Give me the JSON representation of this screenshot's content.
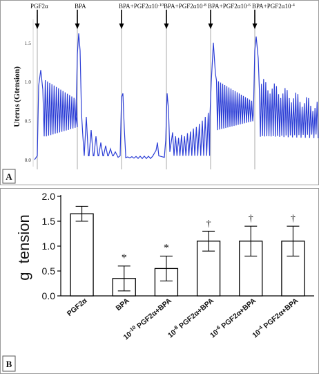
{
  "panel_a": {
    "panel_label": "A",
    "ylabel": "Uterus (Gtension)",
    "y_ticks": [
      "0.0",
      "0.5",
      "1.0",
      "1.5"
    ],
    "markers": [
      {
        "label": "PGF2α",
        "sup": ""
      },
      {
        "label": "BPA",
        "sup": ""
      },
      {
        "label": "BPA+PGF2α10",
        "sup": "-10"
      },
      {
        "label": "BPA+PGF2α10",
        "sup": "-8"
      },
      {
        "label": "BPA+PGF2α10",
        "sup": "-6"
      },
      {
        "label": "BPA+PGF2α10",
        "sup": "-4"
      }
    ],
    "trace_color": "#2d3fd6"
  },
  "panel_b": {
    "panel_label": "B",
    "ylabel": "g  tension",
    "y_tick_labels": [
      "0.0",
      "0.5",
      "1.0",
      "1.5",
      "2.0"
    ],
    "category_labels": [
      {
        "pre": "",
        "sup": "",
        "main": "PGF2α"
      },
      {
        "pre": "",
        "sup": "",
        "main": "BPA"
      },
      {
        "pre": "10",
        "sup": "-10",
        "main": " PGF2α+BPA"
      },
      {
        "pre": "10",
        "sup": "-8",
        "main": " PGF2α+BPA"
      },
      {
        "pre": "10",
        "sup": "-6",
        "main": " PGF2α+BPA"
      },
      {
        "pre": "10",
        "sup": "-4",
        "main": " PGF2α+BPA"
      }
    ],
    "significance_marks": [
      "",
      "*",
      "*",
      "†",
      "†",
      "†"
    ]
  },
  "chart_data": [
    {
      "type": "line",
      "title": "",
      "ylabel": "Uterus (Gtension)",
      "ylim": [
        0,
        1.8
      ],
      "description_events": [
        "PGF2α",
        "BPA",
        "BPA+PGF2α10-10",
        "BPA+PGF2α10-8",
        "BPA+PGF2α10-6",
        "BPA+PGF2α10-4"
      ]
    },
    {
      "type": "bar",
      "categories": [
        "PGF2α",
        "BPA",
        "10-10 PGF2α+BPA",
        "10-8 PGF2α+BPA",
        "10-6 PGF2α+BPA",
        "10-4 PGF2α+BPA"
      ],
      "values": [
        1.65,
        0.35,
        0.55,
        1.1,
        1.1,
        1.1
      ],
      "errors": [
        0.15,
        0.25,
        0.25,
        0.2,
        0.3,
        0.3
      ],
      "ylabel": "g  tension",
      "ylim": [
        0,
        2.0
      ],
      "grid": false
    }
  ]
}
